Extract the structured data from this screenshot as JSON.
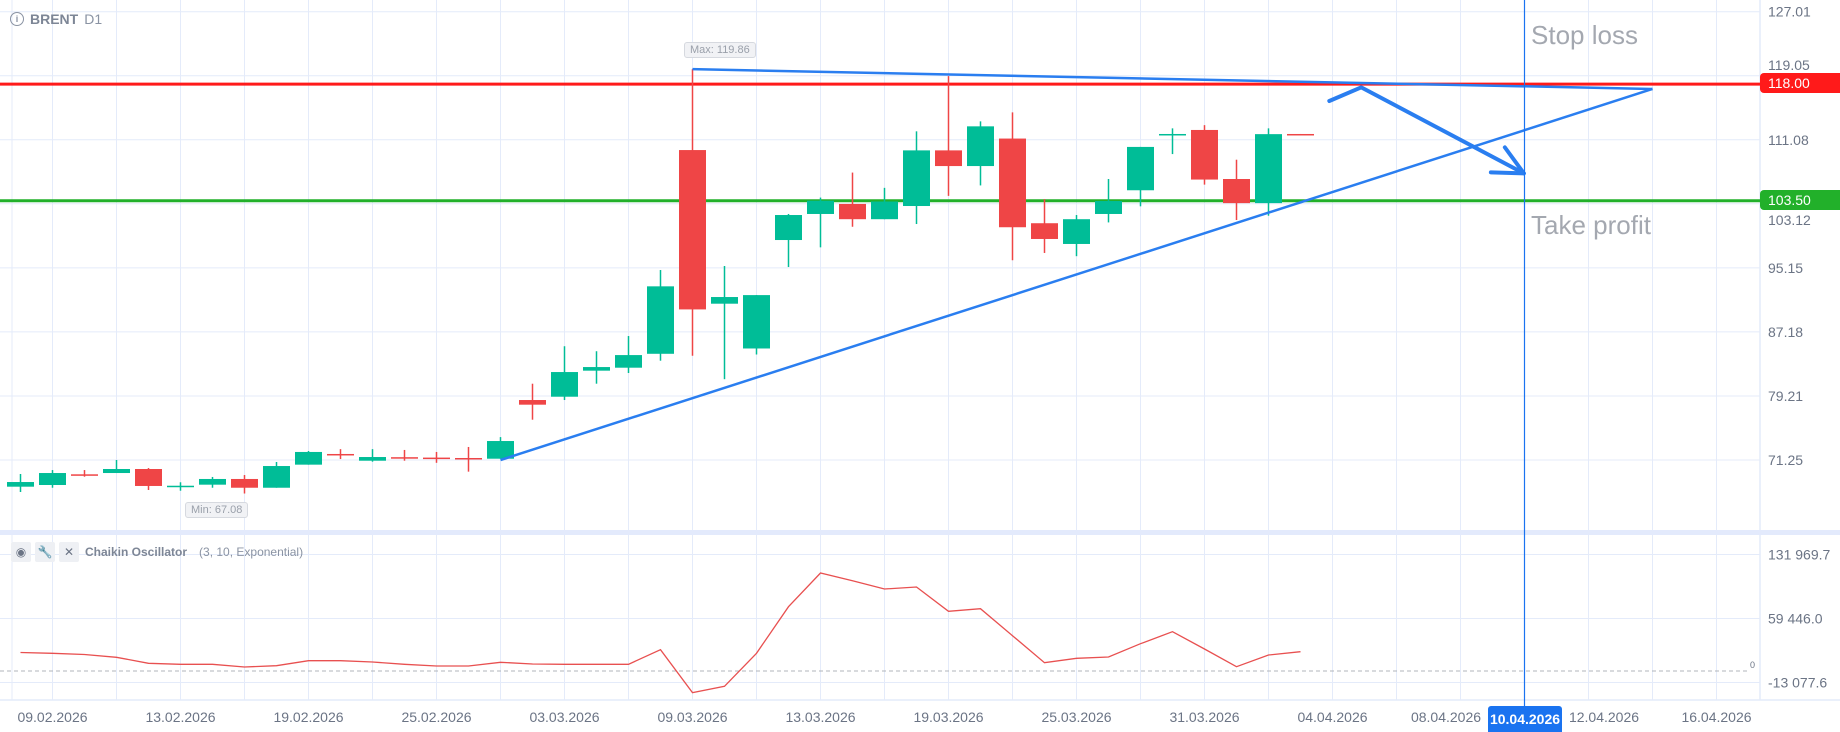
{
  "header": {
    "symbol": "BRENT",
    "timeframe": "D1",
    "info_icon": "info-icon"
  },
  "annotations": {
    "stop_loss_label": "Stop loss",
    "take_profit_label": "Take profit",
    "max_label": "Max: 119.86",
    "min_label": "Min: 67.08"
  },
  "levels": {
    "stop_loss": {
      "value": 118.0,
      "label": "118.00",
      "color": "#ff1a1a"
    },
    "take_profit": {
      "value": 103.5,
      "label": "103.50",
      "color": "#22b02a"
    }
  },
  "crosshair": {
    "date_label": "10.04.2026",
    "index": 47,
    "color": "#1a73f0"
  },
  "indicator": {
    "name": "Chaikin Oscillator",
    "params": "(3, 10, Exponential)",
    "zero_label": "0",
    "buttons": [
      "eye-icon",
      "wrench-icon",
      "close-icon"
    ]
  },
  "colors": {
    "up": "#00bd97",
    "down": "#ef4546",
    "grid": "#e4ebfa",
    "drawing": "#2a7ef0",
    "oscillator": "#e85050"
  },
  "chart_data": [
    {
      "type": "candlestick",
      "title": "BRENT D1",
      "ylim": [
        63,
        127.01
      ],
      "y_ticks": [
        "127.01",
        "119.05",
        "111.08",
        "103.12",
        "95.15",
        "87.18",
        "79.21",
        "71.25"
      ],
      "y_tick_values": [
        127.01,
        119.05,
        111.08,
        103.12,
        95.15,
        87.18,
        79.21,
        71.25
      ],
      "x_labels": [
        {
          "index": 1,
          "label": "09.02.2026"
        },
        {
          "index": 5,
          "label": "13.02.2026"
        },
        {
          "index": 9,
          "label": "19.02.2026"
        },
        {
          "index": 13,
          "label": "25.02.2026"
        },
        {
          "index": 17,
          "label": "03.03.2026"
        },
        {
          "index": 21,
          "label": "09.03.2026"
        },
        {
          "index": 25,
          "label": "13.03.2026"
        },
        {
          "index": 29,
          "label": "19.03.2026"
        },
        {
          "index": 33,
          "label": "25.03.2026"
        },
        {
          "index": 37,
          "label": "31.03.2026"
        },
        {
          "index": 41,
          "label": "04.04.2026"
        },
        {
          "index": 45,
          "label": "08.04.2026"
        },
        {
          "index": 49,
          "label": "12.04.2026"
        },
        {
          "index": 53,
          "label": "16.04.2026"
        }
      ],
      "ohlc": [
        [
          67.93,
          69.51,
          67.27,
          68.51
        ],
        [
          68.14,
          70.0,
          67.8,
          69.63
        ],
        [
          69.47,
          70.0,
          69.17,
          69.38
        ],
        [
          69.63,
          71.25,
          69.63,
          70.13
        ],
        [
          70.13,
          70.25,
          67.52,
          68.02
        ],
        [
          67.97,
          68.48,
          67.43,
          68.05
        ],
        [
          68.18,
          69.14,
          67.8,
          68.89
        ],
        [
          68.89,
          69.38,
          67.08,
          67.8
        ],
        [
          67.8,
          71.0,
          67.8,
          70.5
        ],
        [
          70.67,
          72.37,
          70.67,
          72.25
        ],
        [
          72.0,
          72.6,
          71.37,
          71.95
        ],
        [
          71.16,
          72.6,
          71.04,
          71.62
        ],
        [
          71.6,
          72.5,
          71.16,
          71.55
        ],
        [
          71.55,
          72.25,
          70.9,
          71.5
        ],
        [
          71.5,
          72.87,
          69.8,
          71.45
        ],
        [
          71.41,
          74.1,
          71.41,
          73.61
        ],
        [
          78.71,
          80.74,
          76.26,
          78.13
        ],
        [
          79.12,
          85.4,
          78.71,
          82.19
        ],
        [
          82.36,
          84.78,
          80.74,
          82.81
        ],
        [
          82.73,
          86.67,
          82.07,
          84.3
        ],
        [
          84.46,
          94.88,
          83.6,
          92.85
        ],
        [
          109.8,
          119.86,
          84.22,
          89.98
        ],
        [
          90.69,
          95.38,
          81.3,
          91.52
        ],
        [
          85.12,
          91.76,
          84.37,
          91.76
        ],
        [
          98.61,
          101.85,
          95.25,
          101.72
        ],
        [
          101.85,
          103.89,
          97.7,
          103.5
        ],
        [
          103.1,
          107.0,
          100.26,
          101.2
        ],
        [
          101.2,
          105.1,
          101.2,
          103.4
        ],
        [
          102.84,
          112.13,
          100.6,
          109.76
        ],
        [
          109.76,
          119.0,
          104.1,
          107.81
        ],
        [
          107.81,
          113.37,
          105.4,
          112.75
        ],
        [
          111.23,
          114.49,
          96.09,
          100.2
        ],
        [
          100.7,
          103.7,
          97.0,
          98.74
        ],
        [
          98.12,
          101.72,
          96.6,
          101.2
        ],
        [
          101.85,
          106.2,
          100.8,
          103.46
        ],
        [
          104.8,
          110.19,
          102.8,
          110.19
        ],
        [
          111.7,
          112.5,
          109.3,
          111.8
        ],
        [
          112.3,
          112.9,
          105.5,
          106.13
        ],
        [
          106.2,
          108.6,
          101.1,
          103.2
        ],
        [
          103.2,
          112.5,
          101.63,
          111.78
        ],
        [
          111.8,
          111.8,
          111.78,
          111.78
        ]
      ],
      "trendlines": [
        {
          "name": "upper-trendline",
          "from": [
            21,
            119.86
          ],
          "to": [
            51,
            117.4
          ]
        },
        {
          "name": "lower-trendline",
          "from": [
            15,
            71.25
          ],
          "to": [
            51,
            117.4
          ]
        }
      ],
      "arrow": {
        "points": [
          [
            40.9,
            115.9
          ],
          [
            41.9,
            117.6
          ],
          [
            46.98,
            106.9
          ]
        ]
      }
    },
    {
      "type": "line",
      "title": "Chaikin Oscillator (3, 10, Exponential)",
      "ylim": [
        -13077.6,
        131969.7
      ],
      "y_ticks": [
        "131 969.7",
        "59 446.0",
        "-13 077.6"
      ],
      "y_tick_values": [
        131969.7,
        59446.0,
        -13077.6
      ],
      "values": [
        20960,
        20060,
        18700,
        15520,
        8730,
        7590,
        7590,
        4530,
        6010,
        11670,
        11670,
        10200,
        7590,
        5670,
        5670,
        9860,
        7930,
        7590,
        7590,
        7590,
        24140,
        -24590,
        -17340,
        20060,
        72870,
        111050,
        102330,
        92920,
        95190,
        67650,
        70600,
        40000,
        9410,
        14390,
        15870,
        30940,
        44540,
        24930,
        4870,
        18130,
        21870
      ]
    }
  ]
}
